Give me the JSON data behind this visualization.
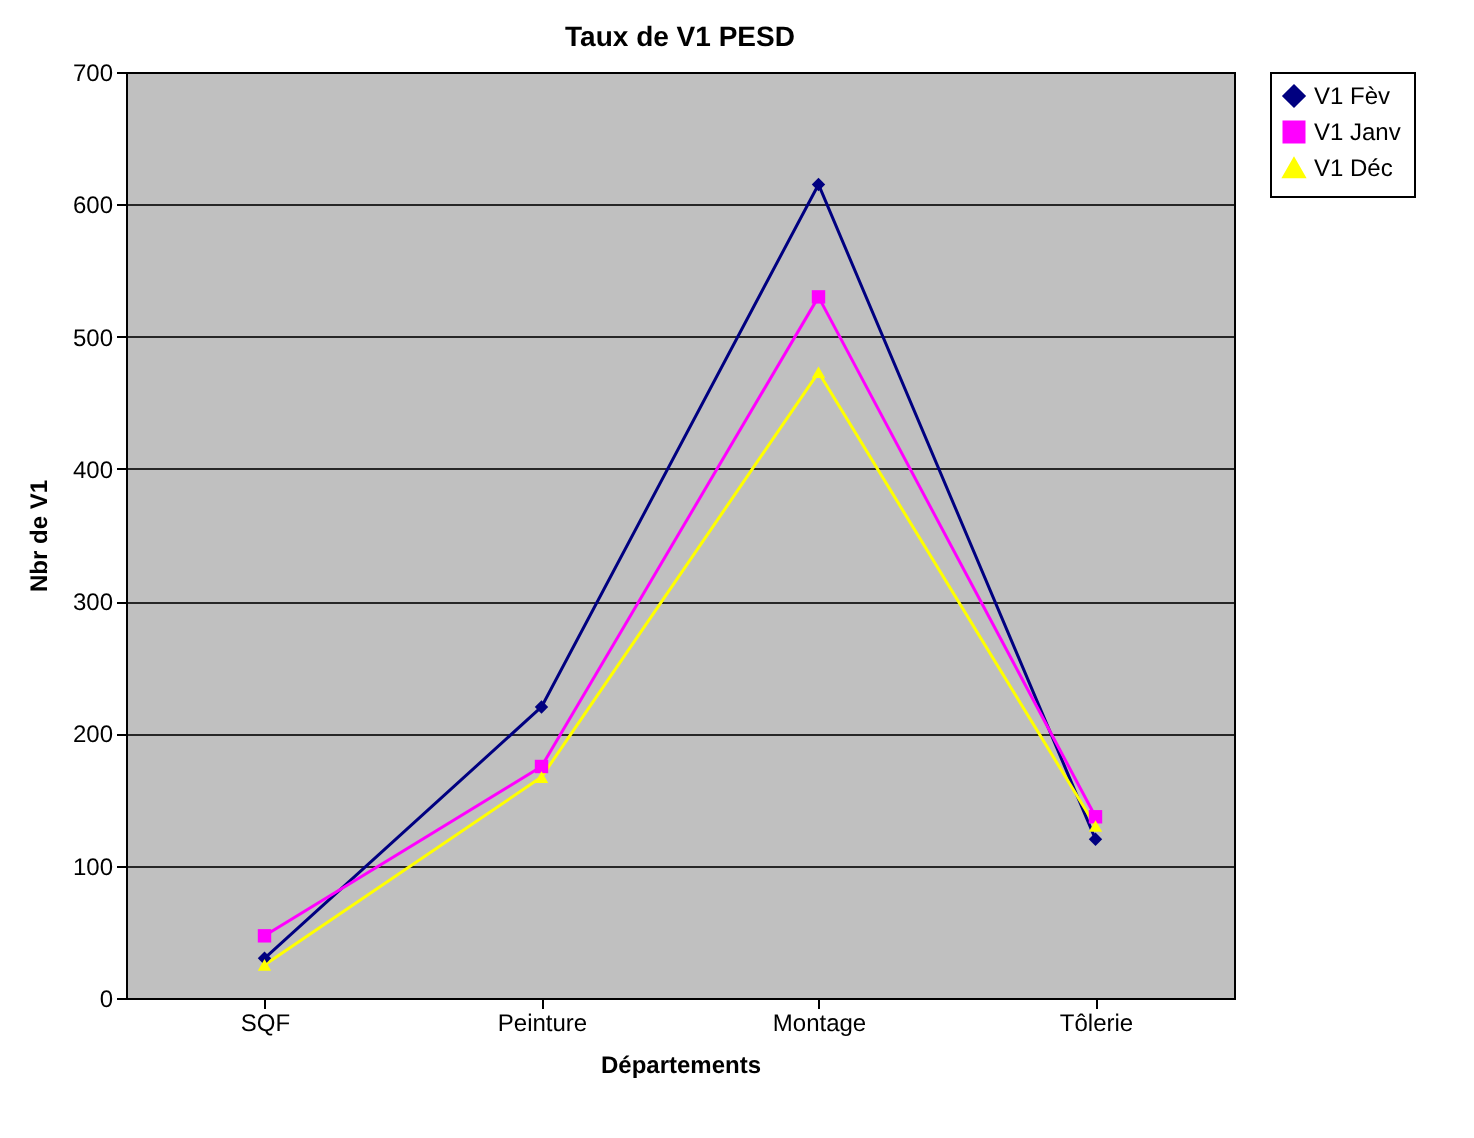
{
  "chart_data": {
    "type": "line",
    "title": "Taux de V1 PESD",
    "xlabel": "Départements",
    "ylabel": "Nbr de V1",
    "categories": [
      "SQF",
      "Peinture",
      "Montage",
      "Tôlerie"
    ],
    "series": [
      {
        "name": "V1 Fèv",
        "color": "#000080",
        "marker": "diamond",
        "values": [
          30,
          220,
          615,
          120
        ]
      },
      {
        "name": "V1 Janv",
        "color": "#ff00ff",
        "marker": "square",
        "values": [
          47,
          175,
          530,
          137
        ]
      },
      {
        "name": "V1 Déc",
        "color": "#ffff00",
        "marker": "triangle",
        "values": [
          25,
          167,
          473,
          130
        ]
      }
    ],
    "ylim": [
      0,
      700
    ],
    "yticks": [
      0,
      100,
      200,
      300,
      400,
      500,
      600,
      700
    ],
    "grid": "y",
    "legend": "right"
  }
}
